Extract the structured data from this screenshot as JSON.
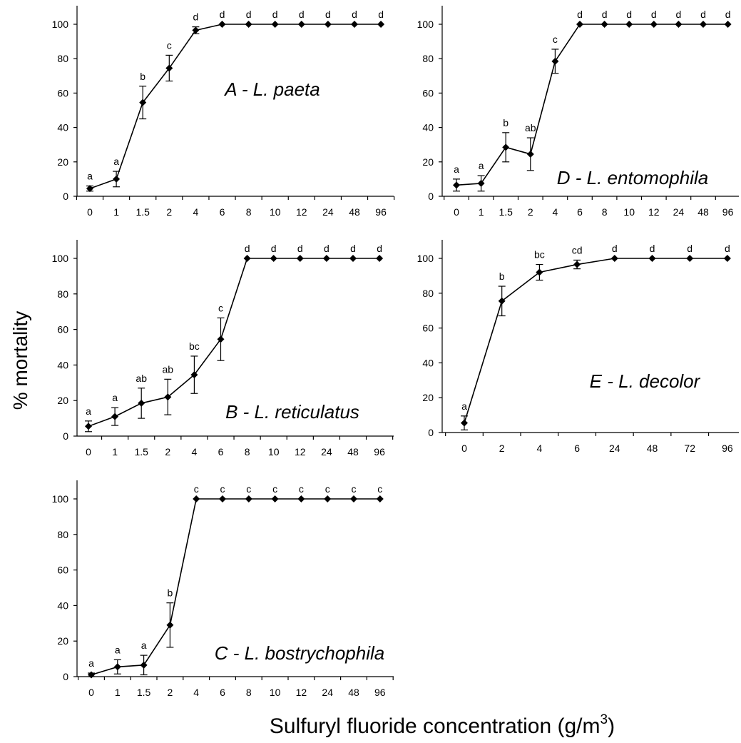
{
  "figure": {
    "ylabel": "% mortality",
    "xlabel": "Sulfuryl fluoride concentration (g/m",
    "xlabel_sup": "3",
    "xlabel_close": ")"
  },
  "chart_data": [
    {
      "type": "line",
      "title": "A - L. paeta",
      "categories": [
        "0",
        "1",
        "1.5",
        "2",
        "4",
        "6",
        "8",
        "10",
        "12",
        "24",
        "48",
        "96"
      ],
      "series": [
        {
          "values": [
            4.5,
            10,
            54.5,
            74.5,
            96.5,
            100,
            100,
            100,
            100,
            100,
            100,
            100
          ],
          "errors": [
            1.5,
            4.5,
            9.5,
            7.5,
            2,
            0,
            0,
            0,
            0,
            0,
            0,
            0
          ]
        }
      ],
      "letters": [
        "a",
        "a",
        "b",
        "c",
        "d",
        "d",
        "d",
        "d",
        "d",
        "d",
        "d",
        "d"
      ],
      "ylim": [
        0,
        100
      ],
      "yticks": [
        0,
        20,
        40,
        60,
        80,
        100
      ]
    },
    {
      "type": "line",
      "title": "D - L. entomophila",
      "categories": [
        "0",
        "1",
        "1.5",
        "2",
        "4",
        "6",
        "8",
        "10",
        "12",
        "24",
        "48",
        "96"
      ],
      "series": [
        {
          "values": [
            6.5,
            7.5,
            28.5,
            24.5,
            78.5,
            100,
            100,
            100,
            100,
            100,
            100,
            100
          ],
          "errors": [
            3.5,
            4.5,
            8.5,
            9.5,
            7,
            0,
            0,
            0,
            0,
            0,
            0,
            0
          ]
        }
      ],
      "letters": [
        "a",
        "a",
        "b",
        "ab",
        "c",
        "d",
        "d",
        "d",
        "d",
        "d",
        "d",
        "d"
      ],
      "ylim": [
        0,
        100
      ],
      "yticks": [
        0,
        20,
        40,
        60,
        80,
        100
      ]
    },
    {
      "type": "line",
      "title": "B - L. reticulatus",
      "categories": [
        "0",
        "1",
        "1.5",
        "2",
        "4",
        "6",
        "8",
        "10",
        "12",
        "24",
        "48",
        "96"
      ],
      "series": [
        {
          "values": [
            5.5,
            11,
            18.5,
            22,
            34.5,
            54.5,
            100,
            100,
            100,
            100,
            100,
            100
          ],
          "errors": [
            3,
            5,
            8.5,
            10,
            10.5,
            12,
            0,
            0,
            0,
            0,
            0,
            0
          ]
        }
      ],
      "letters": [
        "a",
        "a",
        "ab",
        "ab",
        "bc",
        "c",
        "d",
        "d",
        "d",
        "d",
        "d",
        "d"
      ],
      "ylim": [
        0,
        100
      ],
      "yticks": [
        0,
        20,
        40,
        60,
        80,
        100
      ]
    },
    {
      "type": "line",
      "title": "E - L. decolor",
      "categories": [
        "0",
        "2",
        "4",
        "6",
        "24",
        "48",
        "72",
        "96"
      ],
      "series": [
        {
          "values": [
            5.5,
            75.5,
            92,
            96.5,
            100,
            100,
            100,
            100
          ],
          "errors": [
            4,
            8.5,
            4.5,
            2.5,
            0,
            0,
            0,
            0
          ]
        }
      ],
      "letters": [
        "a",
        "b",
        "bc",
        "cd",
        "d",
        "d",
        "d",
        "d"
      ],
      "ylim": [
        0,
        100
      ],
      "yticks": [
        0,
        20,
        40,
        60,
        80,
        100
      ]
    },
    {
      "type": "line",
      "title": "C - L. bostrychophila",
      "categories": [
        "0",
        "1",
        "1.5",
        "2",
        "4",
        "6",
        "8",
        "10",
        "12",
        "24",
        "48",
        "96"
      ],
      "series": [
        {
          "values": [
            1,
            5.5,
            6.5,
            29,
            100,
            100,
            100,
            100,
            100,
            100,
            100,
            100
          ],
          "errors": [
            1,
            4,
            5.5,
            12.5,
            0,
            0,
            0,
            0,
            0,
            0,
            0,
            0
          ]
        }
      ],
      "letters": [
        "a",
        "a",
        "a",
        "b",
        "c",
        "c",
        "c",
        "c",
        "c",
        "c",
        "c",
        "c"
      ],
      "ylim": [
        0,
        100
      ],
      "yticks": [
        0,
        20,
        40,
        60,
        80,
        100
      ]
    }
  ]
}
